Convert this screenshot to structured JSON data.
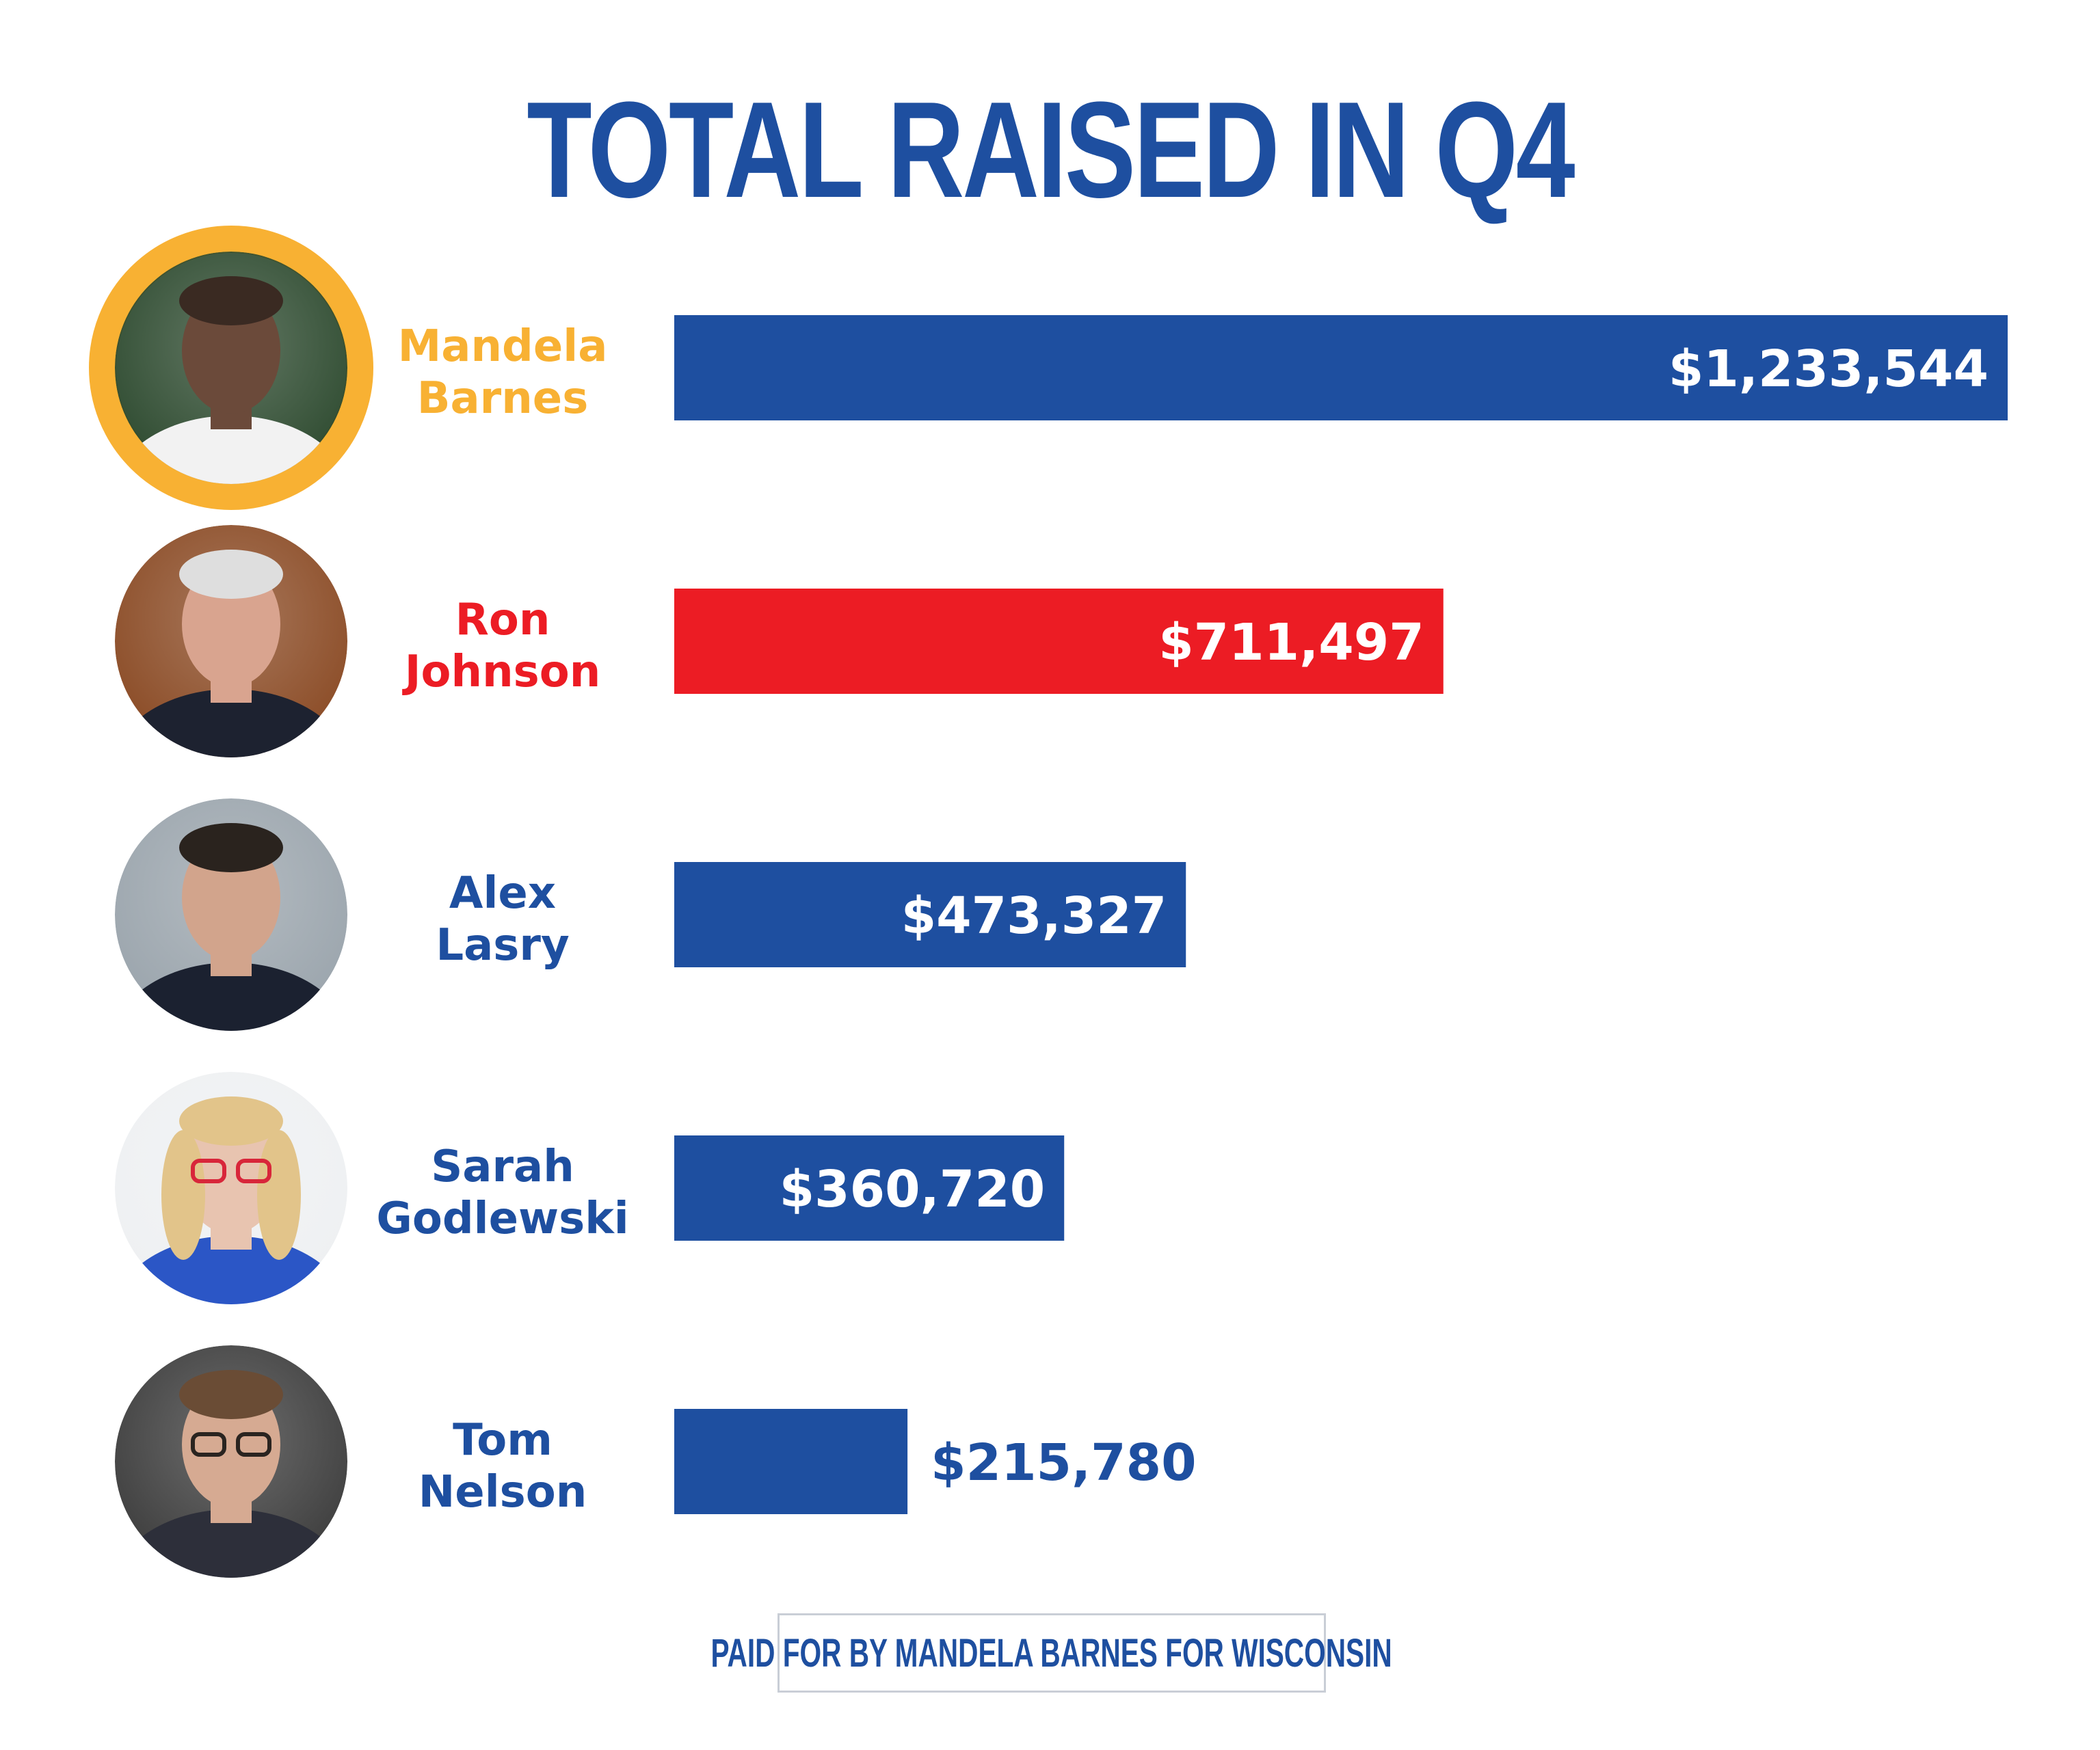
{
  "chart_data": {
    "type": "bar",
    "orientation": "horizontal",
    "title": "TOTAL RAISED IN Q4",
    "categories": [
      "Mandela Barnes",
      "Ron Johnson",
      "Alex Lasry",
      "Sarah Godlewski",
      "Tom Nelson"
    ],
    "name_lines": [
      [
        "Mandela",
        "Barnes"
      ],
      [
        "Ron",
        "Johnson"
      ],
      [
        "Alex",
        "Lasry"
      ],
      [
        "Sarah",
        "Godlewski"
      ],
      [
        "Tom",
        "Nelson"
      ]
    ],
    "values": [
      1233544,
      711497,
      473327,
      360720,
      215780
    ],
    "value_labels": [
      "$1,233,544",
      "$711,497",
      "$473,327",
      "$360,720",
      "$215,780"
    ],
    "bar_colors": [
      "#1e4fa0",
      "#ec1c24",
      "#1e4fa0",
      "#1e4fa0",
      "#1e4fa0"
    ],
    "name_colors": [
      "#f8b133",
      "#ec1c24",
      "#1e4fa0",
      "#1e4fa0",
      "#1e4fa0"
    ],
    "highlight_ring_color": "#f8b133",
    "xlim": [
      0,
      1233544
    ]
  },
  "footer": {
    "text": "PAID FOR BY MANDELA BARNES FOR WISCONSIN"
  },
  "colors": {
    "primary_blue": "#1e4fa0",
    "red": "#ec1c24",
    "gold": "#f8b133"
  }
}
